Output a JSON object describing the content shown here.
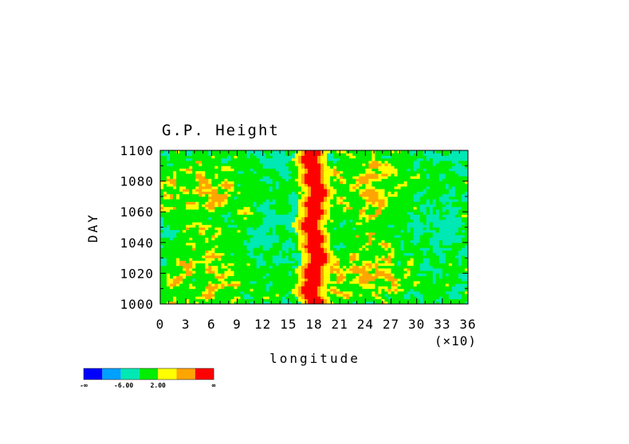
{
  "chart_data": {
    "type": "heatmap",
    "title": "G.P. Height",
    "xlabel": "longitude",
    "xscale_note": "(×10)",
    "ylabel": "DAY",
    "xlim": [
      0,
      36
    ],
    "ylim": [
      1000,
      1100
    ],
    "x_ticks": [
      "0",
      "3",
      "6",
      "9",
      "12",
      "15",
      "18",
      "21",
      "24",
      "27",
      "30",
      "33",
      "36"
    ],
    "y_ticks": [
      "1000",
      "1020",
      "1040",
      "1060",
      "1080",
      "1100"
    ],
    "colorbar": {
      "colors": [
        "#0000ff",
        "#00a0ff",
        "#00e8b4",
        "#00ee00",
        "#ffff00",
        "#ffa500",
        "#ff0000"
      ],
      "labels": [
        "-∞",
        "-6.00",
        "2.00",
        "∞"
      ]
    },
    "ridge": {
      "center_x": 18,
      "core_level": 6,
      "description_levels": [
        "green background",
        "cyan regions",
        "yellow/orange/red band near 180°"
      ]
    }
  }
}
